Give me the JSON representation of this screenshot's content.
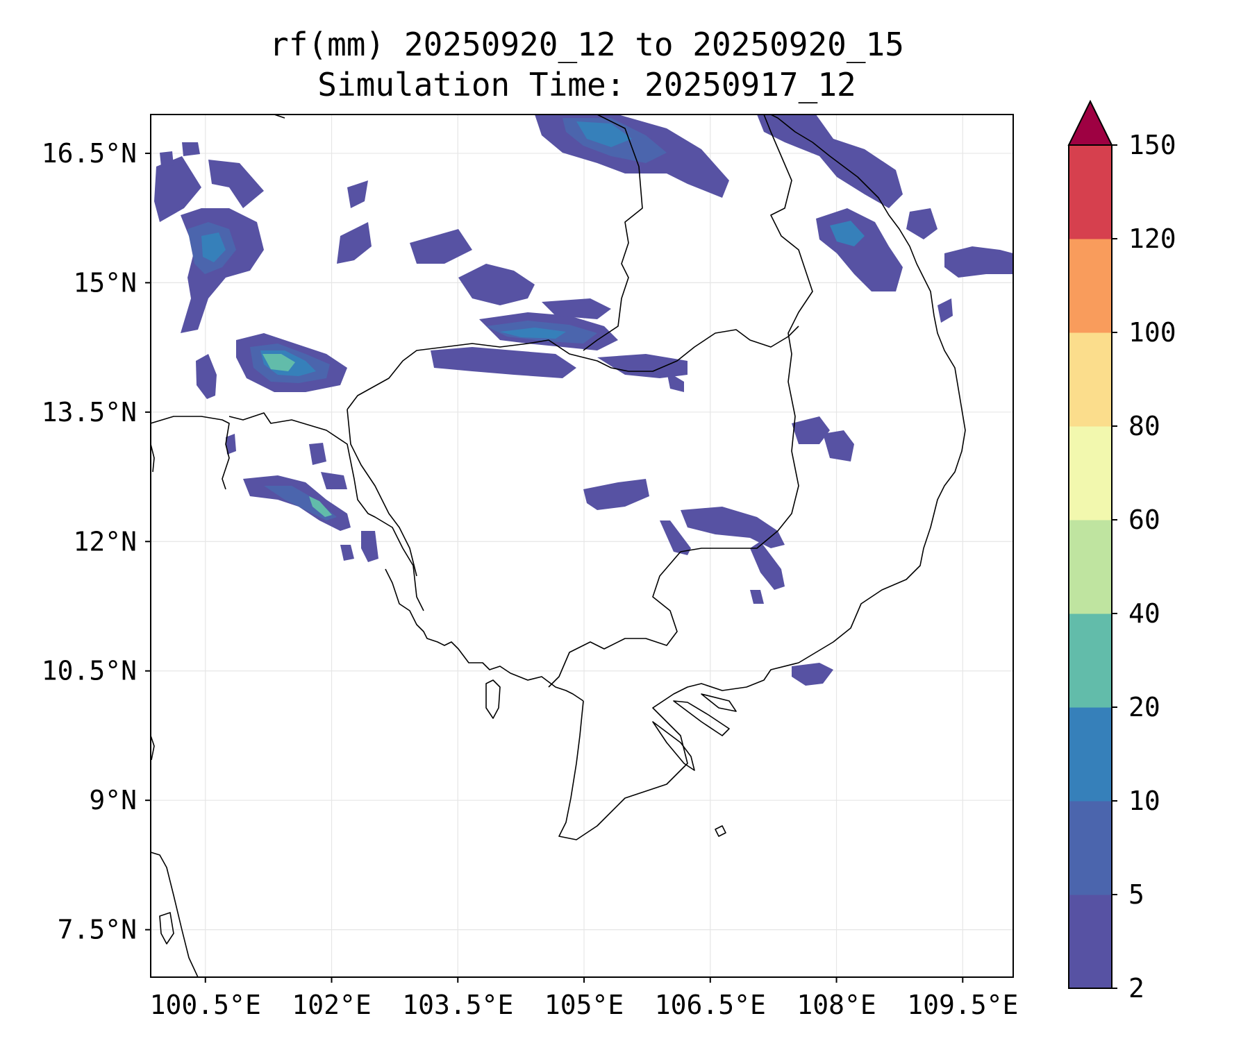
{
  "title_line1": "rf(mm) 20250920_12 to 20250920_15",
  "title_line2": "Simulation Time: 20250917_12",
  "map": {
    "projection": "PlateCarree",
    "lon_range": [
      99.85,
      110.1
    ],
    "lat_range": [
      6.95,
      16.95
    ],
    "x_ticks": [
      {
        "value": 100.5,
        "label": "100.5°E"
      },
      {
        "value": 102,
        "label": "102°E"
      },
      {
        "value": 103.5,
        "label": "103.5°E"
      },
      {
        "value": 105,
        "label": "105°E"
      },
      {
        "value": 106.5,
        "label": "106.5°E"
      },
      {
        "value": 108,
        "label": "108°E"
      },
      {
        "value": 109.5,
        "label": "109.5°E"
      }
    ],
    "y_ticks": [
      {
        "value": 16.5,
        "label": "16.5°N"
      },
      {
        "value": 15,
        "label": "15°N"
      },
      {
        "value": 13.5,
        "label": "13.5°N"
      },
      {
        "value": 12,
        "label": "12°N"
      },
      {
        "value": 10.5,
        "label": "10.5°N"
      },
      {
        "value": 9,
        "label": "9°N"
      },
      {
        "value": 7.5,
        "label": "7.5°N"
      }
    ],
    "gridlines": true
  },
  "colorbar": {
    "levels": [
      2,
      5,
      10,
      20,
      40,
      60,
      80,
      100,
      120,
      150
    ],
    "labels": [
      "2",
      "5",
      "10",
      "20",
      "40",
      "60",
      "80",
      "100",
      "120",
      "150"
    ],
    "colors": [
      "#5752a3",
      "#4b65ad",
      "#3680ba",
      "#62bcaa",
      "#bfe4a0",
      "#f2f8ae",
      "#fbdd8c",
      "#f99c5c",
      "#d6404e"
    ],
    "extend_max_color": "#9e0142",
    "extend": "max"
  },
  "rain_colors": {
    "level_2": "#5752a3",
    "level_5": "#4b65ad",
    "level_10": "#3680ba",
    "level_20": "#62bcaa"
  }
}
